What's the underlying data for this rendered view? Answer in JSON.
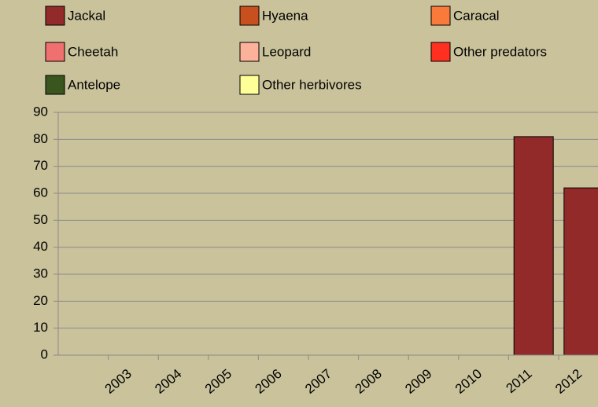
{
  "chart_data": {
    "type": "stacked_bar",
    "categories": [
      null,
      "2003",
      "2004",
      "2005",
      "2006",
      "2007",
      "2008",
      "2009",
      "2010",
      "2011",
      "2012"
    ],
    "series": [
      {
        "name": "Jackal",
        "color": "#922a2a",
        "values": [
          null,
          null,
          null,
          null,
          null,
          null,
          null,
          null,
          null,
          81,
          62
        ]
      },
      {
        "name": "Hyaena",
        "color": "#c8501e",
        "values": [
          null,
          null,
          null,
          null,
          null,
          null,
          null,
          null,
          null,
          null,
          null
        ]
      },
      {
        "name": "Caracal",
        "color": "#f97a3a",
        "values": [
          null,
          null,
          null,
          null,
          null,
          null,
          null,
          null,
          null,
          null,
          null
        ]
      },
      {
        "name": "Cheetah",
        "color": "#f07070",
        "values": [
          null,
          null,
          null,
          null,
          null,
          null,
          null,
          null,
          null,
          null,
          null
        ]
      },
      {
        "name": "Leopard",
        "color": "#fcb19a",
        "values": [
          null,
          null,
          null,
          null,
          null,
          null,
          null,
          null,
          null,
          null,
          null
        ]
      },
      {
        "name": "Other predators",
        "color": "#ff3020",
        "values": [
          null,
          null,
          null,
          null,
          null,
          null,
          null,
          null,
          null,
          null,
          null
        ]
      },
      {
        "name": "Antelope",
        "color": "#38561e",
        "values": [
          null,
          null,
          null,
          null,
          null,
          null,
          null,
          null,
          null,
          null,
          null
        ]
      },
      {
        "name": "Other herbivores",
        "color": "#ffff9a",
        "values": [
          null,
          null,
          null,
          null,
          null,
          null,
          null,
          null,
          null,
          null,
          null
        ]
      }
    ],
    "ylim": [
      0,
      90
    ],
    "yticks": [
      0,
      10,
      20,
      30,
      40,
      50,
      60,
      70,
      80,
      90
    ],
    "grid": true
  }
}
